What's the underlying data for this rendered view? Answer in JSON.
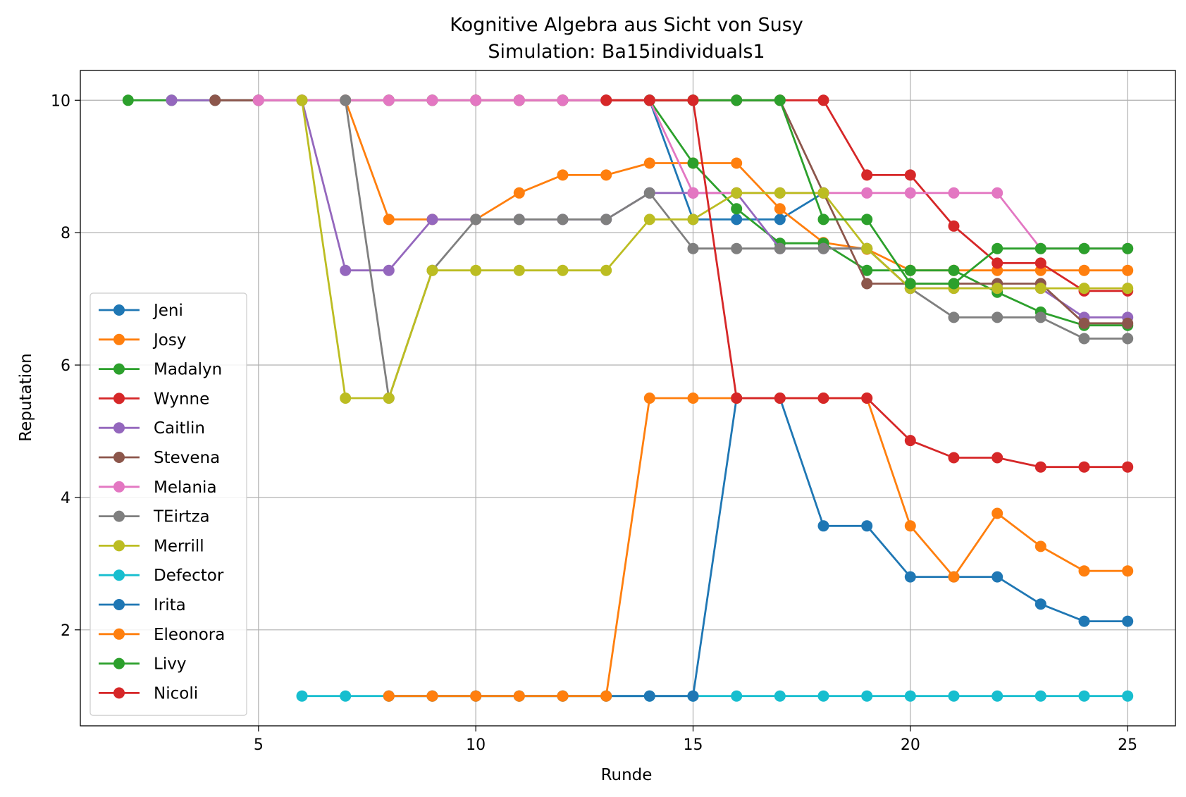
{
  "chart_data": {
    "type": "line",
    "title": "Kognitive Algebra aus Sicht von Susy",
    "subtitle": "Simulation: Ba15individuals1",
    "xlabel": "Runde",
    "ylabel": "Reputation",
    "xlim": [
      0.9,
      26.1
    ],
    "ylim": [
      0.55,
      10.45
    ],
    "xticks": [
      5,
      10,
      15,
      20,
      25
    ],
    "yticks": [
      2,
      4,
      6,
      8,
      10
    ],
    "grid": true,
    "legend_position": "lower-left",
    "series": [
      {
        "name": "Jeni",
        "color": "#1f77b4",
        "x": [
          14,
          15,
          16,
          17,
          18
        ],
        "y": [
          10,
          8.2,
          8.2,
          8.2,
          8.6
        ]
      },
      {
        "name": "Josy",
        "color": "#ff7f0e",
        "x": [
          7,
          8,
          9,
          10,
          11,
          12,
          13,
          14,
          15,
          16,
          17,
          18,
          19,
          20,
          21,
          22,
          23,
          24,
          25
        ],
        "y": [
          10,
          8.2,
          8.2,
          8.2,
          8.6,
          8.87,
          8.87,
          9.05,
          9.05,
          9.05,
          8.36,
          7.85,
          7.75,
          7.43,
          7.43,
          7.43,
          7.43,
          7.43,
          7.43
        ]
      },
      {
        "name": "Madalyn",
        "color": "#2ca02c",
        "x": [
          2,
          3,
          4,
          5,
          6,
          7,
          8,
          9,
          10,
          11,
          12,
          13,
          14,
          15,
          16,
          17,
          18,
          19,
          20,
          21,
          22,
          23,
          24,
          25
        ],
        "y": [
          10,
          10,
          10,
          10,
          10,
          10,
          10,
          10,
          10,
          10,
          10,
          10,
          10,
          9.05,
          8.36,
          7.84,
          7.84,
          7.43,
          7.43,
          7.43,
          7.1,
          6.8,
          6.6,
          6.6
        ]
      },
      {
        "name": "Wynne",
        "color": "#d62728",
        "x": [
          10,
          11,
          12,
          13,
          14,
          15,
          16,
          17,
          18,
          19,
          20,
          21,
          22,
          23,
          24,
          25
        ],
        "y": [
          10,
          10,
          10,
          10,
          10,
          10,
          10,
          10,
          10,
          8.87,
          8.87,
          8.1,
          7.54,
          7.54,
          7.12,
          7.12
        ]
      },
      {
        "name": "Caitlin",
        "color": "#9467bd",
        "x": [
          3,
          4,
          5,
          6,
          7,
          8,
          9,
          10,
          11,
          12,
          13,
          14,
          15,
          16,
          17,
          18,
          19,
          20,
          21,
          22,
          23,
          24,
          25
        ],
        "y": [
          10,
          10,
          10,
          10,
          7.43,
          7.43,
          8.2,
          8.2,
          8.2,
          8.2,
          8.2,
          8.6,
          8.6,
          8.6,
          7.76,
          7.76,
          7.76,
          7.16,
          7.16,
          7.16,
          7.16,
          6.72,
          6.72
        ]
      },
      {
        "name": "Stevena",
        "color": "#8c564b",
        "x": [
          4,
          5,
          6,
          7,
          8,
          9,
          10,
          11,
          12,
          13,
          14,
          15,
          16,
          17,
          18,
          19,
          20,
          21,
          22,
          23,
          24,
          25
        ],
        "y": [
          10,
          10,
          10,
          10,
          10,
          10,
          10,
          10,
          10,
          10,
          10,
          10,
          10,
          10,
          8.6,
          7.23,
          7.23,
          7.23,
          7.23,
          7.23,
          6.63,
          6.63
        ]
      },
      {
        "name": "Melania",
        "color": "#e377c2",
        "x": [
          5,
          6,
          7,
          8,
          9,
          10,
          11,
          12,
          13,
          14,
          15,
          16,
          17,
          18,
          19,
          20,
          21,
          22,
          23,
          24,
          25
        ],
        "y": [
          10,
          10,
          10,
          10,
          10,
          10,
          10,
          10,
          10,
          10,
          8.6,
          8.6,
          8.6,
          8.6,
          8.6,
          8.6,
          8.6,
          8.6,
          7.76,
          7.76,
          7.76
        ]
      },
      {
        "name": "TEirtza",
        "color": "#7f7f7f",
        "x": [
          7,
          8,
          9,
          10,
          11,
          12,
          13,
          14,
          15,
          16,
          17,
          18,
          19,
          20,
          21,
          22,
          23,
          24,
          25
        ],
        "y": [
          10,
          5.5,
          7.43,
          8.2,
          8.2,
          8.2,
          8.2,
          8.6,
          7.76,
          7.76,
          7.76,
          7.76,
          7.76,
          7.16,
          6.72,
          6.72,
          6.72,
          6.4,
          6.4
        ]
      },
      {
        "name": "Merrill",
        "color": "#bcbd22",
        "x": [
          6,
          7,
          8,
          9,
          10,
          11,
          12,
          13,
          14,
          15,
          16,
          17,
          18,
          19,
          20,
          21,
          22,
          23,
          24,
          25
        ],
        "y": [
          10,
          5.5,
          5.5,
          7.43,
          7.43,
          7.43,
          7.43,
          7.43,
          8.2,
          8.2,
          8.6,
          8.6,
          8.6,
          7.76,
          7.16,
          7.16,
          7.16,
          7.16,
          7.16,
          7.16
        ]
      },
      {
        "name": "Defector",
        "color": "#17becf",
        "x": [
          6,
          7,
          8,
          9,
          10,
          11,
          12,
          13,
          14,
          15,
          16,
          17,
          18,
          19,
          20,
          21,
          22,
          23,
          24,
          25
        ],
        "y": [
          1,
          1,
          1,
          1,
          1,
          1,
          1,
          1,
          1,
          1,
          1,
          1,
          1,
          1,
          1,
          1,
          1,
          1,
          1,
          1
        ]
      },
      {
        "name": "Irita",
        "color": "#1f77b4",
        "x": [
          8,
          9,
          10,
          11,
          12,
          13,
          14,
          15,
          16,
          17,
          18,
          19,
          20,
          21,
          22,
          23,
          24,
          25
        ],
        "y": [
          1,
          1,
          1,
          1,
          1,
          1,
          1,
          1,
          5.5,
          5.5,
          3.57,
          3.57,
          2.8,
          2.8,
          2.8,
          2.39,
          2.13,
          2.13
        ]
      },
      {
        "name": "Eleonora",
        "color": "#ff7f0e",
        "x": [
          8,
          9,
          10,
          11,
          12,
          13,
          14,
          15,
          16,
          17,
          18,
          19,
          20,
          21,
          22,
          23,
          24,
          25
        ],
        "y": [
          1,
          1,
          1,
          1,
          1,
          1,
          5.5,
          5.5,
          5.5,
          5.5,
          5.5,
          5.5,
          3.57,
          2.8,
          3.76,
          3.26,
          2.89,
          2.89
        ]
      },
      {
        "name": "Livy",
        "color": "#2ca02c",
        "x": [
          14,
          15,
          16,
          17,
          18,
          19,
          20,
          21,
          22,
          23,
          24,
          25
        ],
        "y": [
          10,
          10,
          10,
          10,
          8.2,
          8.2,
          7.23,
          7.23,
          7.76,
          7.76,
          7.76,
          7.76
        ]
      },
      {
        "name": "Nicoli",
        "color": "#d62728",
        "x": [
          13,
          14,
          15,
          16,
          17,
          18,
          19,
          20,
          21,
          22,
          23,
          24,
          25
        ],
        "y": [
          10,
          10,
          10,
          5.5,
          5.5,
          5.5,
          5.5,
          4.86,
          4.6,
          4.6,
          4.46,
          4.46,
          4.46
        ]
      }
    ]
  }
}
